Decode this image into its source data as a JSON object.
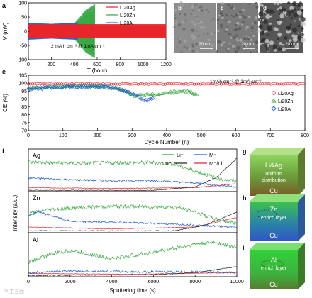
{
  "panels": {
    "a": {
      "letter": "a",
      "ylabel": "V (mV)",
      "xlabel": "T (hour)",
      "annotation": "2 mA h cm⁻²  @ 1mA cm⁻²",
      "xticks": [
        "0",
        "200",
        "400",
        "600",
        "800",
        "1000",
        "1200"
      ],
      "yticks": [
        "100",
        "50",
        "0",
        "-50",
        "-100"
      ]
    },
    "b": {
      "letter": "b",
      "scale": "20 um"
    },
    "c": {
      "letter": "c",
      "scale": "20 um"
    },
    "d": {
      "letter": "d",
      "scale": "20 um"
    },
    "e": {
      "letter": "e",
      "ylabel": "CE (%)",
      "xlabel": "Cycle Number (n)",
      "annotation": "1mAh cm⁻²  @ 1mA cm⁻²",
      "xticks": [
        "0",
        "100",
        "200",
        "300",
        "400",
        "500",
        "600",
        "700",
        "800"
      ],
      "yticks": [
        "105",
        "100",
        "95",
        "90",
        "85",
        "80",
        "75",
        "70"
      ]
    },
    "f": {
      "letter": "f",
      "ylabel": "Intensity (a.u.)",
      "xlabel": "Sputtering time (s)",
      "xticks": [
        "0",
        "2000",
        "4000",
        "6000",
        "8000",
        "10000"
      ],
      "sub": [
        "Ag",
        "Zn",
        "Al"
      ],
      "legend": [
        "Li⁻",
        "M⁻",
        "Cu⁻",
        "M⁻/Li"
      ]
    },
    "g": {
      "letter": "g",
      "title": "Li&Ag",
      "line1": "uniform",
      "line2": "distribution",
      "base": "Cu"
    },
    "h": {
      "letter": "h",
      "title": "Zn",
      "line1": "enrich layer",
      "base": "Cu"
    },
    "i": {
      "letter": "i",
      "title": "Al",
      "line1": "enrich layer",
      "base": "Cu"
    }
  },
  "watermark": "™ 工三面",
  "colors": {
    "red": "#e8252b",
    "green": "#3aa845",
    "blue": "#1f5fd0",
    "black": "#222222"
  },
  "chart_data": [
    {
      "type": "line",
      "xlabel": "T (hour)",
      "ylabel": "V (mV)",
      "xlim": [
        0,
        1200
      ],
      "ylim": [
        -100,
        100
      ],
      "series": [
        {
          "name": "Li20Ag",
          "x": [
            0,
            100,
            200,
            400,
            600,
            800,
            1000,
            1200
          ],
          "y_amplitude": [
            25,
            25,
            25,
            25,
            25,
            25,
            25,
            25
          ]
        },
        {
          "name": "Li20Zn",
          "x": [
            0,
            100,
            200,
            400,
            450,
            500,
            580
          ],
          "y_amplitude": [
            28,
            25,
            25,
            28,
            50,
            75,
            95
          ]
        },
        {
          "name": "Li20Al",
          "x": [
            0,
            100,
            200,
            300,
            430
          ],
          "y_amplitude": [
            30,
            28,
            26,
            28,
            30
          ]
        }
      ]
    },
    {
      "type": "scatter",
      "xlabel": "Cycle Number (n)",
      "ylabel": "CE (%)",
      "xlim": [
        0,
        800
      ],
      "ylim": [
        70,
        105
      ],
      "series": [
        {
          "name": "Li20Ag",
          "x": [
            0,
            100,
            200,
            300,
            400,
            500,
            600,
            700,
            800
          ],
          "y": [
            99.5,
            99.5,
            99.5,
            99.5,
            99.5,
            99.5,
            99.5,
            99.5,
            99.5
          ]
        },
        {
          "name": "Li20Zn",
          "x": [
            0,
            100,
            200,
            250,
            280,
            310,
            350,
            380,
            410,
            450,
            490
          ],
          "y": [
            97,
            98,
            98.5,
            97,
            95,
            92,
            93,
            92.5,
            94,
            95,
            93
          ]
        },
        {
          "name": "Li20Al",
          "x": [
            0,
            100,
            200,
            250,
            280,
            310,
            340,
            360
          ],
          "y": [
            96.5,
            97.5,
            98,
            97,
            95,
            92,
            89,
            91
          ]
        }
      ]
    },
    {
      "type": "line",
      "title": "Ag",
      "xlabel": "Sputtering time (s)",
      "xlim": [
        0,
        10000
      ],
      "series": [
        {
          "name": "Li-",
          "x": [
            0,
            2000,
            4000,
            6000,
            7000,
            8000,
            9000,
            10000
          ],
          "y": [
            0.75,
            0.72,
            0.73,
            0.74,
            0.7,
            0.52,
            0.35,
            0.25
          ]
        },
        {
          "name": "M-",
          "x": [
            0,
            2000,
            4000,
            6000,
            8000,
            10000
          ],
          "y": [
            0.35,
            0.3,
            0.28,
            0.28,
            0.22,
            0.12
          ]
        },
        {
          "name": "Cu-",
          "x": [
            0,
            6000,
            8000,
            9000,
            10000
          ],
          "y": [
            0.03,
            0.03,
            0.12,
            0.35,
            0.85
          ]
        },
        {
          "name": "M-/Li",
          "x": [
            0,
            4000,
            8000,
            10000
          ],
          "y": [
            0.1,
            0.08,
            0.1,
            0.2
          ]
        }
      ]
    },
    {
      "type": "line",
      "title": "Zn",
      "xlabel": "Sputtering time (s)",
      "xlim": [
        0,
        10000
      ],
      "series": [
        {
          "name": "Li-",
          "x": [
            0,
            1000,
            4000,
            7000,
            8000,
            9000,
            10000
          ],
          "y": [
            0.5,
            0.62,
            0.7,
            0.68,
            0.55,
            0.35,
            0.25
          ]
        },
        {
          "name": "M-",
          "x": [
            0,
            500,
            2000,
            6000,
            8000,
            10000
          ],
          "y": [
            0.45,
            0.55,
            0.3,
            0.25,
            0.2,
            0.15
          ]
        },
        {
          "name": "Cu-",
          "x": [
            0,
            7000,
            8500,
            10000
          ],
          "y": [
            0.05,
            0.05,
            0.2,
            0.55
          ]
        },
        {
          "name": "M-/Li",
          "x": [
            0,
            4000,
            8000,
            10000
          ],
          "y": [
            0.15,
            0.1,
            0.15,
            0.4
          ]
        }
      ]
    },
    {
      "type": "line",
      "title": "Al",
      "xlabel": "Sputtering time (s)",
      "xlim": [
        0,
        10000
      ],
      "series": [
        {
          "name": "Li-",
          "x": [
            0,
            1000,
            2000,
            3000,
            4000,
            6000,
            8000,
            9000,
            10000
          ],
          "y": [
            0.35,
            0.55,
            0.65,
            0.55,
            0.45,
            0.6,
            0.8,
            0.85,
            0.7
          ]
        },
        {
          "name": "M-",
          "x": [
            0,
            2000,
            5000,
            8000,
            10000
          ],
          "y": [
            0.1,
            0.14,
            0.12,
            0.12,
            0.1
          ]
        },
        {
          "name": "Cu-",
          "x": [
            0,
            6000,
            8000,
            10000
          ],
          "y": [
            0.03,
            0.05,
            0.1,
            0.25
          ]
        },
        {
          "name": "M-/Li",
          "x": [
            0,
            5000,
            10000
          ],
          "y": [
            0.08,
            0.06,
            0.1
          ]
        }
      ]
    }
  ]
}
